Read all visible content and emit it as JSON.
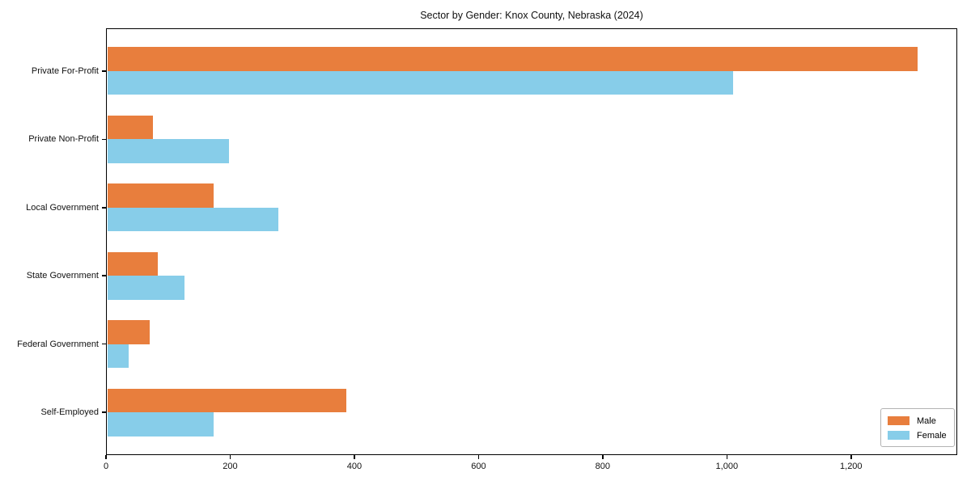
{
  "chart_data": {
    "type": "bar",
    "orientation": "horizontal",
    "title": "Sector by Gender: Knox County, Nebraska (2024)",
    "categories": [
      "Private For-Profit",
      "Private Non-Profit",
      "Local Government",
      "State Government",
      "Federal Government",
      "Self-Employed"
    ],
    "series": [
      {
        "name": "Male",
        "color": "#e87e3d",
        "values": [
          1305,
          74,
          172,
          81,
          69,
          385
        ]
      },
      {
        "name": "Female",
        "color": "#87cde9",
        "values": [
          1008,
          196,
          276,
          124,
          34,
          172
        ]
      }
    ],
    "xlabel": "",
    "ylabel": "",
    "xlim": [
      0,
      1371
    ],
    "x_ticks": [
      0,
      200,
      400,
      600,
      800,
      1000,
      1200
    ],
    "x_tick_labels": [
      "0",
      "200",
      "400",
      "600",
      "800",
      "1,000",
      "1,200"
    ],
    "grid": false,
    "legend_position": "lower-right"
  },
  "colors": {
    "background": "#ffffff",
    "axis": "#000000",
    "male": "#e87e3d",
    "female": "#87cde9",
    "legend_border": "#b3b3b3",
    "text": "#111111"
  }
}
